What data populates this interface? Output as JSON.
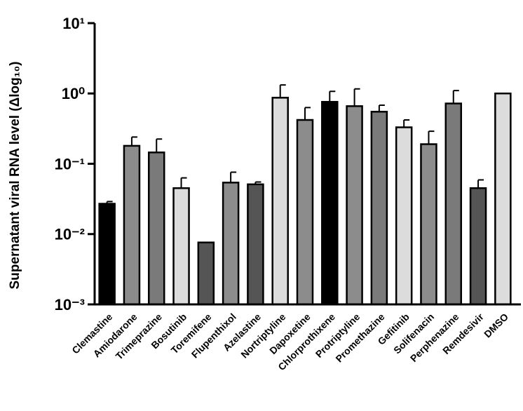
{
  "chart_data": {
    "type": "bar",
    "y_label": "Supernatant viral RNA level (Δlog₁₀)",
    "categories": [
      "Clemastine",
      "Amiodarone",
      "Trimeprazine",
      "Bosutinib",
      "Toremifene",
      "Flupenthixol",
      "Azelastine",
      "Nortriptyline",
      "Dapoxetine",
      "Chlorprothixene",
      "Protriptyline",
      "Promethazine",
      "Gefitinib",
      "Solifenacin",
      "Perphenazine",
      "Remdesivir",
      "DMSO"
    ],
    "values": [
      0.027,
      0.18,
      0.145,
      0.045,
      0.0076,
      0.054,
      0.051,
      0.87,
      0.42,
      0.76,
      0.66,
      0.55,
      0.33,
      0.19,
      0.72,
      0.045,
      1.0
    ],
    "errors": [
      0.002,
      0.06,
      0.08,
      0.018,
      null,
      0.022,
      0.004,
      0.45,
      0.21,
      0.31,
      0.5,
      0.13,
      0.09,
      0.1,
      0.38,
      0.014,
      null
    ],
    "colors": [
      "#000000",
      "#8c8c8c",
      "#7a7a7a",
      "#dcdcdc",
      "#555555",
      "#8c8c8c",
      "#555555",
      "#dcdcdc",
      "#8c8c8c",
      "#000000",
      "#8c8c8c",
      "#7a7a7a",
      "#dcdcdc",
      "#8c8c8c",
      "#7a7a7a",
      "#555555",
      "#dcdcdc"
    ],
    "log_scale": true,
    "ylim": [
      0.001,
      10
    ],
    "yticks": [
      {
        "value": 10,
        "label": "10¹"
      },
      {
        "value": 1,
        "label": "10⁰"
      },
      {
        "value": 0.1,
        "label": "10⁻¹"
      },
      {
        "value": 0.01,
        "label": "10⁻²"
      },
      {
        "value": 0.001,
        "label": "10⁻³"
      }
    ]
  }
}
